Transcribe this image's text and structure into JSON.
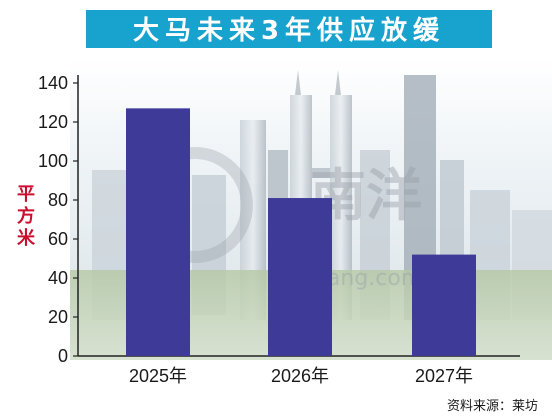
{
  "title": "大马未来3年供应放缓",
  "ylabel": "平方米",
  "source": "资料来源：莱坊",
  "watermark": {
    "brand": "南洋",
    "text": "Nanyang.com"
  },
  "colors": {
    "bar": "#3d3a98",
    "title_bg": "#18a3cf",
    "ylabel": "#c8102e"
  },
  "chart_data": {
    "type": "bar",
    "title": "大马未来3年供应放缓",
    "ylabel": "平方米",
    "xlabel": "",
    "categories": [
      "2025年",
      "2026年",
      "2027年"
    ],
    "values": [
      127,
      81,
      52
    ],
    "ylim": [
      0,
      140
    ],
    "yticks": [
      0,
      20,
      40,
      60,
      80,
      100,
      120,
      140
    ],
    "grid": false
  }
}
